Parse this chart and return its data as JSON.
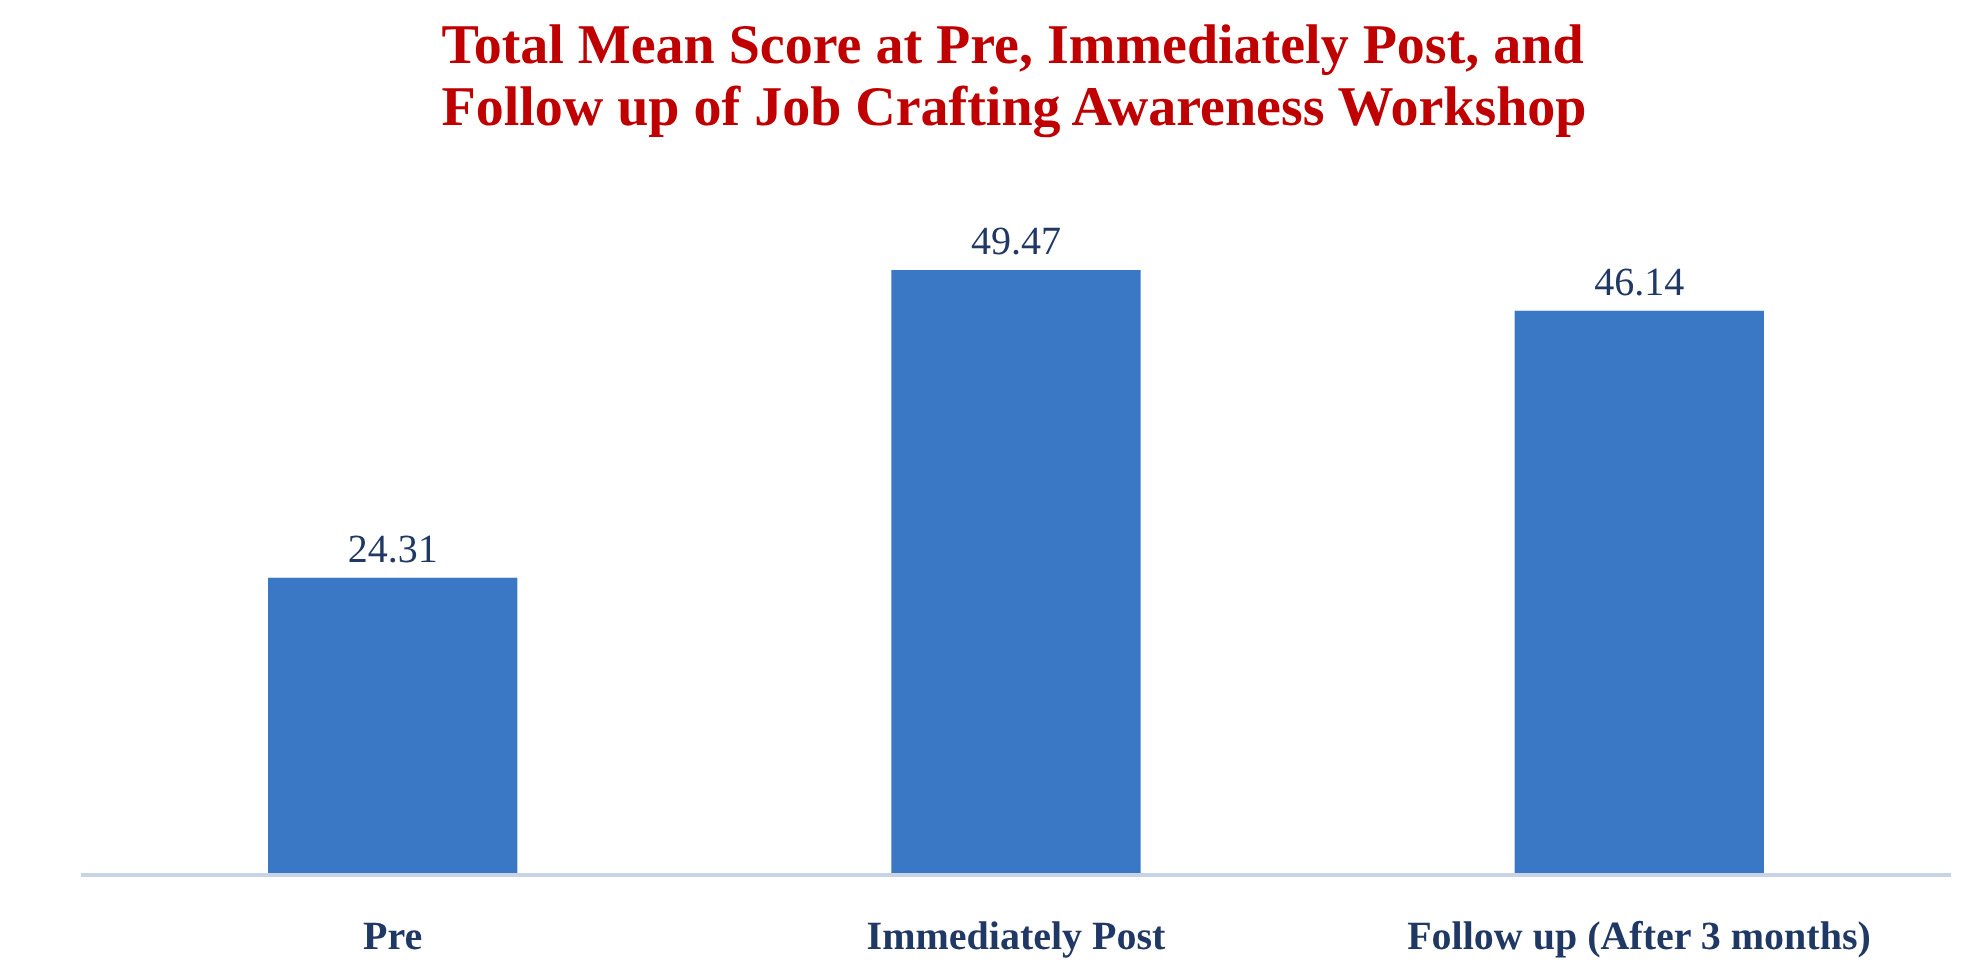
{
  "chart_data": {
    "type": "bar",
    "title": "Total Mean Score at Pre, Immediately Post, and\nFollow up of Job Crafting Awareness Workshop",
    "categories": [
      "Pre",
      "Immediately Post",
      "Follow up (After 3 months)"
    ],
    "values": [
      24.31,
      49.47,
      46.14
    ],
    "color": "#3a78c6",
    "data_labels": true
  }
}
